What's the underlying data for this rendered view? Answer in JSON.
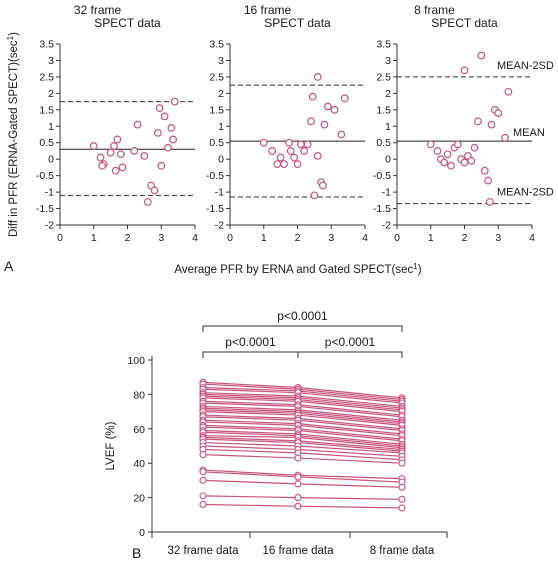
{
  "chart_data": [
    {
      "type": "scatter",
      "panel_letter": "A",
      "ylabel": "Diff in PFR (ERNA-Gated SPECT)(sec",
      "ylabel_sup": "1",
      "ylabel_end": ")",
      "xlabel": "Average PFR by ERNA and Gated SPECT(sec",
      "xlabel_sup": "1",
      "xlabel_end": ")",
      "xlim": [
        0,
        4
      ],
      "ylim": [
        -2,
        3.5
      ],
      "xticks": [
        "0",
        "1",
        "2",
        "3",
        "4"
      ],
      "yticks": [
        "3.5",
        "3",
        "2.5",
        "2",
        "1.5",
        "1",
        "0.5",
        "0",
        "-0.5",
        "-1",
        "-1.5",
        "-2"
      ],
      "ytick_values": [
        3.5,
        3,
        2.5,
        2,
        1.5,
        1,
        0.5,
        0,
        -0.5,
        -1,
        -1.5,
        -2
      ],
      "xtick_values": [
        0,
        1,
        2,
        3,
        4
      ],
      "marker_color": "#c8537a",
      "panels": [
        {
          "title_line1": "32 frame",
          "title_line2": "SPECT data",
          "mean": 0.3,
          "upper": 1.75,
          "lower": -1.1,
          "points": [
            [
              1.0,
              0.4
            ],
            [
              1.2,
              0.05
            ],
            [
              1.3,
              -0.15
            ],
            [
              1.25,
              -0.2
            ],
            [
              1.5,
              0.2
            ],
            [
              1.6,
              0.4
            ],
            [
              1.7,
              0.6
            ],
            [
              1.65,
              -0.35
            ],
            [
              1.8,
              0.15
            ],
            [
              1.85,
              -0.25
            ],
            [
              2.2,
              0.25
            ],
            [
              2.3,
              1.05
            ],
            [
              2.5,
              0.1
            ],
            [
              2.6,
              -1.3
            ],
            [
              2.7,
              -0.8
            ],
            [
              2.8,
              -0.95
            ],
            [
              2.9,
              0.8
            ],
            [
              2.95,
              1.55
            ],
            [
              3.0,
              -0.2
            ],
            [
              3.1,
              1.3
            ],
            [
              3.3,
              0.95
            ],
            [
              3.35,
              0.6
            ],
            [
              3.4,
              1.75
            ],
            [
              3.2,
              0.35
            ]
          ]
        },
        {
          "title_line1": "16 frame",
          "title_line2": "SPECT data",
          "mean": 0.55,
          "upper": 2.25,
          "lower": -1.15,
          "points": [
            [
              1.0,
              0.5
            ],
            [
              1.25,
              0.25
            ],
            [
              1.4,
              -0.15
            ],
            [
              1.5,
              0.05
            ],
            [
              1.6,
              -0.15
            ],
            [
              1.75,
              0.5
            ],
            [
              1.8,
              0.25
            ],
            [
              1.9,
              0.05
            ],
            [
              2.0,
              -0.15
            ],
            [
              2.1,
              0.45
            ],
            [
              2.2,
              0.25
            ],
            [
              2.3,
              0.45
            ],
            [
              2.4,
              1.15
            ],
            [
              2.45,
              1.9
            ],
            [
              2.5,
              -1.1
            ],
            [
              2.6,
              2.5
            ],
            [
              2.7,
              -0.7
            ],
            [
              2.75,
              -0.8
            ],
            [
              2.8,
              1.05
            ],
            [
              2.9,
              1.6
            ],
            [
              3.1,
              1.5
            ],
            [
              3.3,
              0.75
            ],
            [
              3.4,
              1.85
            ],
            [
              2.6,
              0.1
            ]
          ]
        },
        {
          "title_line1": "8 frame",
          "title_line2": "SPECT data",
          "mean": 0.55,
          "upper": 2.5,
          "lower": -1.35,
          "mean_label": "MEAN",
          "upper_label": "MEAN-2SD",
          "lower_label": "MEAN-2SD",
          "points": [
            [
              1.0,
              0.45
            ],
            [
              1.2,
              0.25
            ],
            [
              1.3,
              0.0
            ],
            [
              1.4,
              -0.1
            ],
            [
              1.5,
              0.15
            ],
            [
              1.6,
              -0.2
            ],
            [
              1.7,
              0.35
            ],
            [
              1.8,
              0.45
            ],
            [
              1.9,
              0.0
            ],
            [
              2.0,
              -0.1
            ],
            [
              2.1,
              0.1
            ],
            [
              2.2,
              -0.05
            ],
            [
              2.3,
              0.35
            ],
            [
              2.4,
              1.15
            ],
            [
              2.5,
              3.15
            ],
            [
              2.6,
              -0.35
            ],
            [
              2.7,
              -0.65
            ],
            [
              2.75,
              -1.3
            ],
            [
              2.8,
              1.05
            ],
            [
              2.9,
              1.5
            ],
            [
              3.0,
              1.4
            ],
            [
              3.2,
              0.65
            ],
            [
              3.3,
              2.05
            ],
            [
              2.0,
              2.7
            ]
          ]
        }
      ]
    },
    {
      "type": "line",
      "panel_letter": "B",
      "ylabel": "LVEF (%)",
      "categories": [
        "32 frame data",
        "16 frame data",
        "8 frame data"
      ],
      "ylim": [
        0,
        100
      ],
      "yticks": [
        "100",
        "80",
        "60",
        "40",
        "20",
        "0"
      ],
      "ytick_values": [
        100,
        80,
        60,
        40,
        20,
        0
      ],
      "line_color": "#c8537a",
      "brackets": [
        {
          "label": "p<0.0001",
          "from": 0,
          "to": 2,
          "level": "top"
        },
        {
          "label": "p<0.0001",
          "from": 0,
          "to": 1,
          "level": "low"
        },
        {
          "label": "p<0.0001",
          "from": 1,
          "to": 2,
          "level": "low"
        }
      ],
      "series_values": [
        [
          87,
          84,
          78
        ],
        [
          86,
          83,
          77
        ],
        [
          84,
          82,
          76
        ],
        [
          83,
          81,
          75
        ],
        [
          81,
          79,
          73
        ],
        [
          80,
          78,
          72
        ],
        [
          79,
          77,
          71
        ],
        [
          78,
          76,
          70
        ],
        [
          76,
          74,
          68
        ],
        [
          75,
          73,
          67
        ],
        [
          73,
          71,
          65
        ],
        [
          72,
          70,
          64
        ],
        [
          71,
          69,
          63
        ],
        [
          70,
          68,
          62
        ],
        [
          68,
          66,
          60
        ],
        [
          67,
          65,
          59
        ],
        [
          65,
          63,
          57
        ],
        [
          64,
          62,
          56
        ],
        [
          62,
          60,
          54
        ],
        [
          61,
          59,
          53
        ],
        [
          59,
          57,
          51
        ],
        [
          58,
          56,
          50
        ],
        [
          56,
          55,
          49
        ],
        [
          55,
          53,
          48
        ],
        [
          54,
          52,
          47
        ],
        [
          52,
          50,
          46
        ],
        [
          50,
          48,
          44
        ],
        [
          48,
          46,
          42
        ],
        [
          45,
          43,
          40
        ],
        [
          36,
          33,
          31
        ],
        [
          35,
          32,
          29
        ],
        [
          30,
          28,
          26
        ],
        [
          21,
          20,
          19
        ],
        [
          16,
          15,
          14
        ]
      ]
    }
  ]
}
